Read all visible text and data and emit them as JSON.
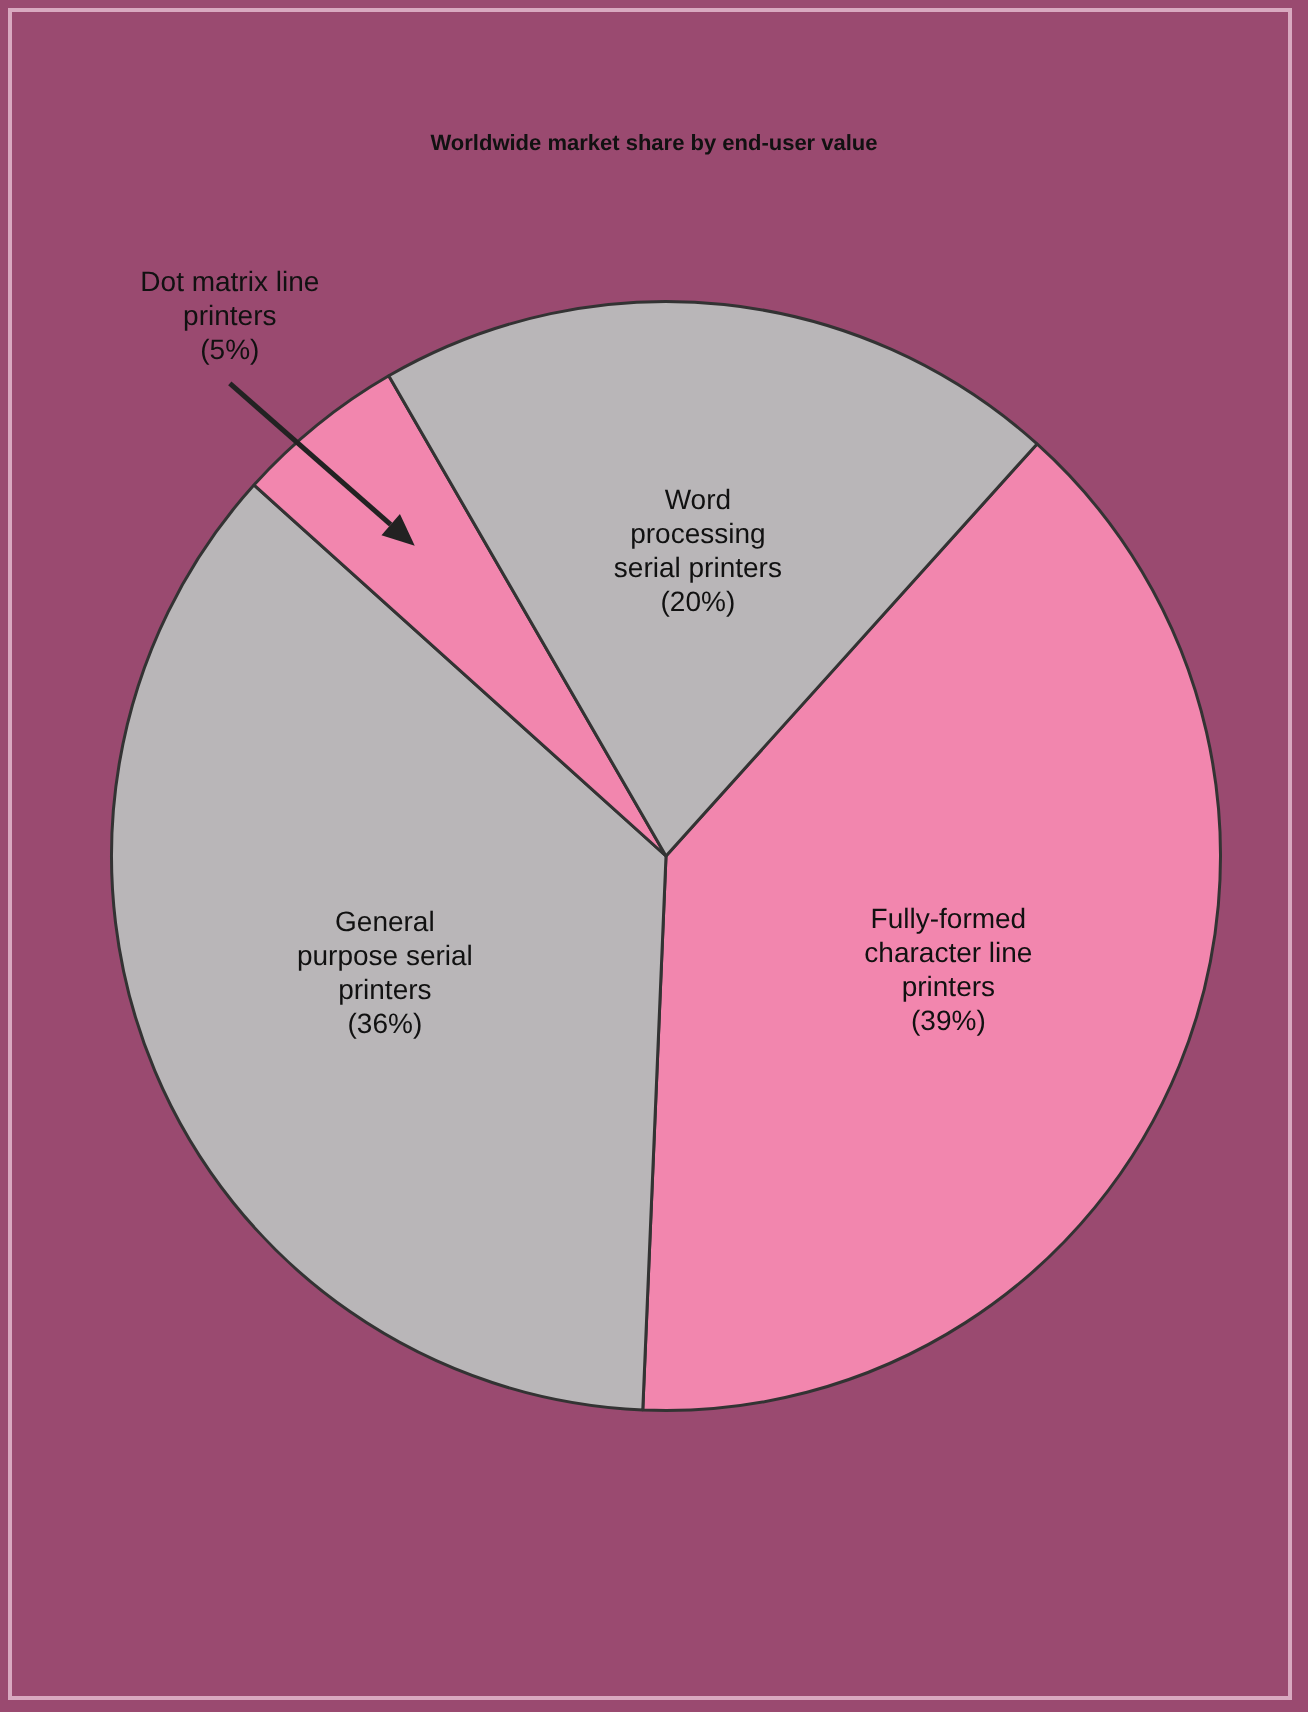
{
  "chart_data": {
    "type": "pie",
    "title": "Worldwide market share by end-user value",
    "categories": [
      "Fully-formed character line printers",
      "General purpose serial printers",
      "Dot matrix line printers",
      "Word processing serial printers"
    ],
    "values": [
      39,
      36,
      5,
      20
    ],
    "value_labels": [
      "(39%)",
      "(36%)",
      "(5%)",
      "(20%)"
    ],
    "colors": [
      "#f286ae",
      "#b9b6b8",
      "#f286ae",
      "#b9b6b8"
    ],
    "legend": false
  }
}
